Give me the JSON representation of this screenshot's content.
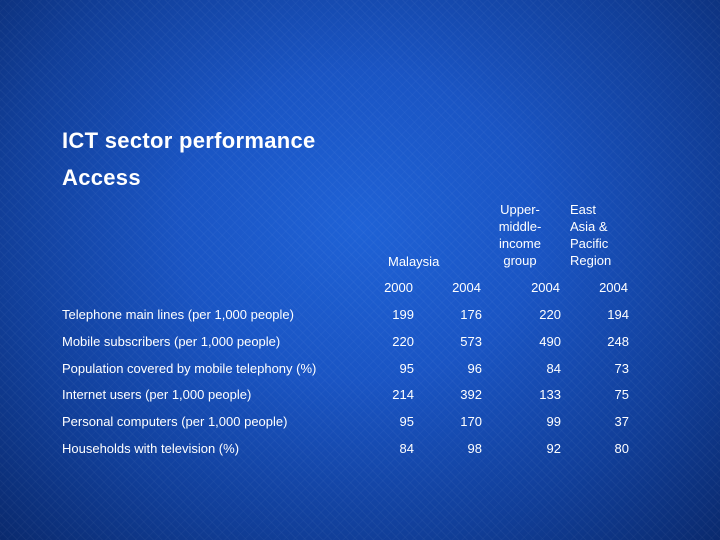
{
  "title": {
    "line1": "ICT sector performance",
    "line2": "Access"
  },
  "columns": {
    "malaysia": "Malaysia",
    "umi": [
      "Upper-",
      "middle-",
      "income",
      "group"
    ],
    "eap": [
      "East",
      "Asia &",
      "Pacific",
      "Region"
    ]
  },
  "years": [
    "2000",
    "2004",
    "2004",
    "2004"
  ],
  "rows": [
    {
      "label": "Telephone main lines (per 1,000 people)",
      "values": [
        "199",
        "176",
        "220",
        "194"
      ]
    },
    {
      "label": "Mobile subscribers (per 1,000 people)",
      "values": [
        "220",
        "573",
        "490",
        "248"
      ]
    },
    {
      "label": "Population covered by mobile telephony (%)",
      "values": [
        "95",
        "96",
        "84",
        "73"
      ]
    },
    {
      "label": "Internet users (per 1,000 people)",
      "values": [
        "214",
        "392",
        "133",
        "75"
      ]
    },
    {
      "label": "Personal computers (per 1,000 people)",
      "values": [
        "95",
        "170",
        "99",
        "37"
      ]
    },
    {
      "label": "Households with television (%)",
      "values": [
        "84",
        "98",
        "92",
        "80"
      ]
    }
  ]
}
